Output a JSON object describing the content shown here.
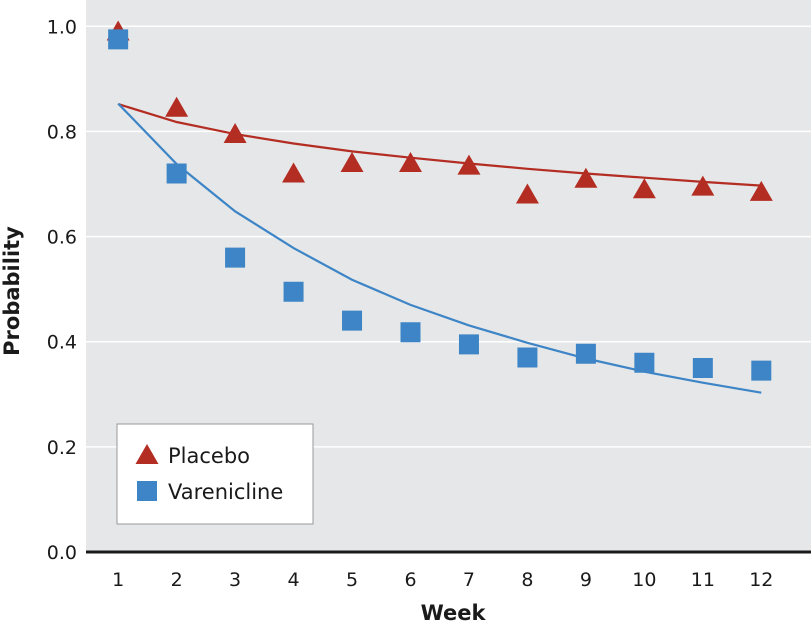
{
  "chart_data": {
    "type": "scatter",
    "title": "",
    "xlabel": "Week",
    "ylabel": "Probability",
    "xlim": [
      0.45,
      12.85
    ],
    "ylim": [
      0.0,
      1.05
    ],
    "x_ticks": [
      "1",
      "2",
      "3",
      "4",
      "5",
      "6",
      "7",
      "8",
      "9",
      "10",
      "11",
      "12"
    ],
    "y_ticks": [
      "0.0",
      "0.2",
      "0.4",
      "0.6",
      "0.8",
      "1.0"
    ],
    "grid": true,
    "legend_position": "bottom-left",
    "background": "#e6e7e8",
    "series": [
      {
        "name": "Placebo",
        "marker": "triangle",
        "color": "#b32d23",
        "x": [
          1,
          2,
          3,
          4,
          5,
          6,
          7,
          8,
          9,
          10,
          11,
          12
        ],
        "y": [
          0.99,
          0.845,
          0.795,
          0.72,
          0.74,
          0.74,
          0.735,
          0.68,
          0.71,
          0.69,
          0.695,
          0.685
        ],
        "fit": {
          "x": [
            1,
            2,
            3,
            4,
            5,
            6,
            7,
            8,
            9,
            10,
            11,
            12
          ],
          "y": [
            0.852,
            0.818,
            0.795,
            0.777,
            0.762,
            0.75,
            0.739,
            0.729,
            0.72,
            0.712,
            0.704,
            0.697
          ]
        }
      },
      {
        "name": "Varenicline",
        "marker": "square",
        "color": "#3d85c6",
        "x": [
          1,
          2,
          3,
          4,
          5,
          6,
          7,
          8,
          9,
          10,
          11,
          12
        ],
        "y": [
          0.975,
          0.72,
          0.56,
          0.495,
          0.44,
          0.418,
          0.395,
          0.37,
          0.377,
          0.36,
          0.35,
          0.345
        ],
        "fit": {
          "x": [
            1,
            2,
            3,
            4,
            5,
            6,
            7,
            8,
            9,
            10,
            11,
            12
          ],
          "y": [
            0.853,
            0.738,
            0.648,
            0.578,
            0.518,
            0.47,
            0.431,
            0.398,
            0.368,
            0.343,
            0.322,
            0.303
          ]
        }
      }
    ]
  }
}
